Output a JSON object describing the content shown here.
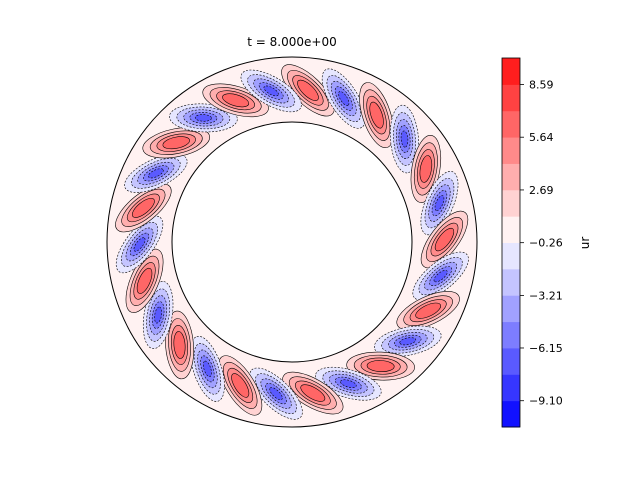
{
  "chart_data": {
    "type": "heatmap",
    "subtype": "polar-annulus-filled-contour",
    "title": "t = 8.000e+00",
    "field": {
      "description_of_pattern": "alternating positive/negative tilted cells around annulus",
      "positive_cells": 13,
      "negative_cells": 13,
      "amplitude": 10.5
    },
    "colorbar": {
      "label": "ur",
      "vmin": -10.57,
      "vmax": 10.07,
      "ticks": [
        {
          "value": 8.59,
          "label": "8.59"
        },
        {
          "value": 5.64,
          "label": "5.64"
        },
        {
          "value": 2.69,
          "label": "2.69"
        },
        {
          "value": -0.26,
          "label": "−0.26"
        },
        {
          "value": -3.21,
          "label": "−3.21"
        },
        {
          "value": -6.15,
          "label": "−6.15"
        },
        {
          "value": -9.1,
          "label": "−9.10"
        }
      ],
      "levels_colors": [
        "#1111ff",
        "#3636ff",
        "#5a5aff",
        "#7d7dff",
        "#a1a1ff",
        "#c4c4ff",
        "#e6e6ff",
        "#fff2f2",
        "#ffd2d2",
        "#ffaeae",
        "#ff8a8a",
        "#ff6666",
        "#ff4242",
        "#ff1e1e"
      ],
      "colormap": "bwr"
    },
    "colors": {
      "positive": "#ff1e1e",
      "negative": "#1111ff",
      "neutral": "#ffffff"
    }
  }
}
